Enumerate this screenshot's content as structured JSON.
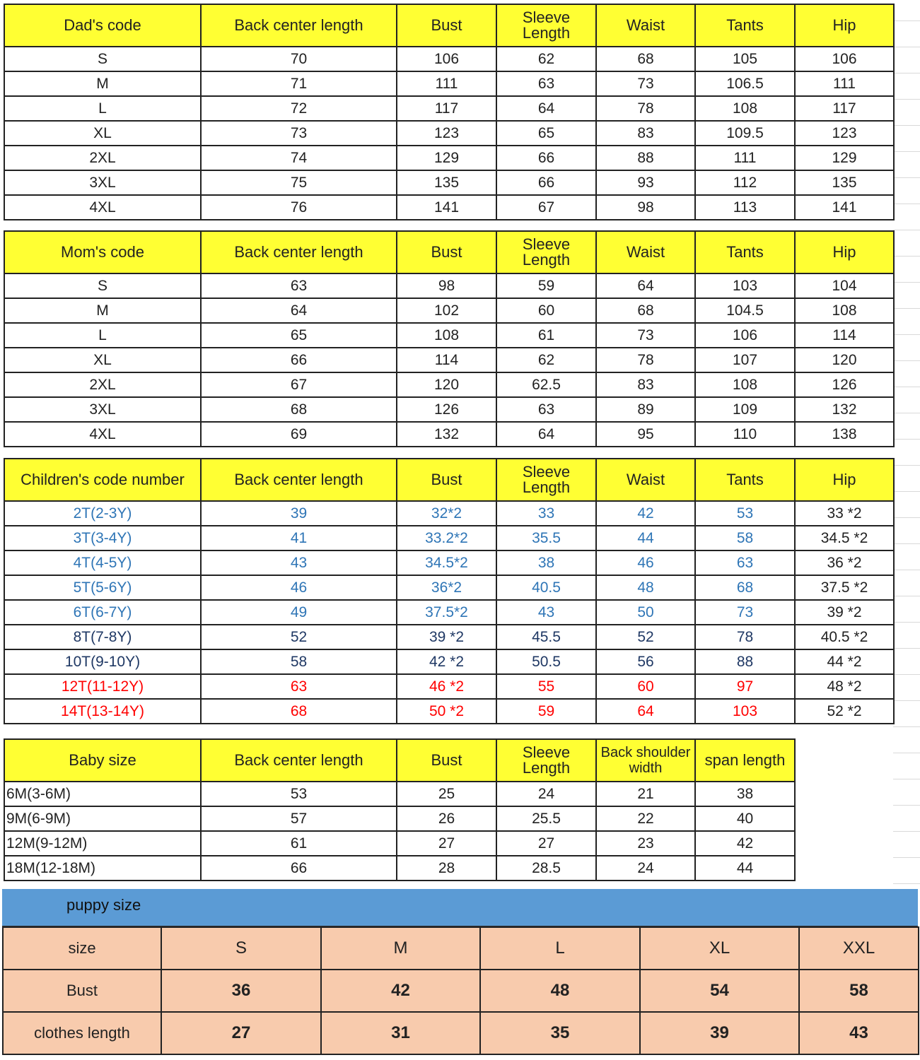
{
  "colors": {
    "header_yellow": "#ffff33",
    "puppy_bar": "#5b9bd5",
    "puppy_cells": "#f8cbad",
    "blue": "#2e75b6",
    "navy": "#1f3864",
    "red": "#ff0000"
  },
  "sections": [
    {
      "headers": [
        "Dad's code",
        "Back center length",
        "Bust",
        "Sleeve Length",
        "Waist",
        "Tants",
        "Hip"
      ],
      "rows": [
        [
          "S",
          "70",
          "106",
          "62",
          "68",
          "105",
          "106"
        ],
        [
          "M",
          "71",
          "111",
          "63",
          "73",
          "106.5",
          "111"
        ],
        [
          "L",
          "72",
          "117",
          "64",
          "78",
          "108",
          "117"
        ],
        [
          "XL",
          "73",
          "123",
          "65",
          "83",
          "109.5",
          "123"
        ],
        [
          "2XL",
          "74",
          "129",
          "66",
          "88",
          "111",
          "129"
        ],
        [
          "3XL",
          "75",
          "135",
          "66",
          "93",
          "112",
          "135"
        ],
        [
          "4XL",
          "76",
          "141",
          "67",
          "98",
          "113",
          "141"
        ]
      ]
    },
    {
      "headers": [
        "Mom's code",
        "Back center length",
        "Bust",
        "Sleeve Length",
        "Waist",
        "Tants",
        "Hip"
      ],
      "rows": [
        [
          "S",
          "63",
          "98",
          "59",
          "64",
          "103",
          "104"
        ],
        [
          "M",
          "64",
          "102",
          "60",
          "68",
          "104.5",
          "108"
        ],
        [
          "L",
          "65",
          "108",
          "61",
          "73",
          "106",
          "114"
        ],
        [
          "XL",
          "66",
          "114",
          "62",
          "78",
          "107",
          "120"
        ],
        [
          "2XL",
          "67",
          "120",
          "62.5",
          "83",
          "108",
          "126"
        ],
        [
          "3XL",
          "68",
          "126",
          "63",
          "89",
          "109",
          "132"
        ],
        [
          "4XL",
          "69",
          "132",
          "64",
          "95",
          "110",
          "138"
        ]
      ]
    },
    {
      "headers": [
        "Children's code number",
        "Back center length",
        "Bust",
        "Sleeve Length",
        "Waist",
        "Tants",
        "Hip"
      ],
      "rows": [
        [
          "2T(2-3Y)",
          "39",
          "32*2",
          "33",
          "42",
          "53",
          "33 *2"
        ],
        [
          "3T(3-4Y)",
          "41",
          "33.2*2",
          "35.5",
          "44",
          "58",
          "34.5 *2"
        ],
        [
          "4T(4-5Y)",
          "43",
          "34.5*2",
          "38",
          "46",
          "63",
          "36 *2"
        ],
        [
          "5T(5-6Y)",
          "46",
          "36*2",
          "40.5",
          "48",
          "68",
          "37.5 *2"
        ],
        [
          "6T(6-7Y)",
          "49",
          "37.5*2",
          "43",
          "50",
          "73",
          "39 *2"
        ],
        [
          "8T(7-8Y)",
          "52",
          "39 *2",
          "45.5",
          "52",
          "78",
          "40.5 *2"
        ],
        [
          "10T(9-10Y)",
          "58",
          "42 *2",
          "50.5",
          "56",
          "88",
          "44 *2"
        ],
        [
          "12T(11-12Y)",
          "63",
          "46 *2",
          "55",
          "60",
          "97",
          "48 *2"
        ],
        [
          "14T(13-14Y)",
          "68",
          "50 *2",
          "59",
          "64",
          "103",
          "52 *2"
        ]
      ],
      "row_colors": [
        "#2e75b6",
        "#2e75b6",
        "#2e75b6",
        "#2e75b6",
        "#2e75b6",
        "#1f3864",
        "#1f3864",
        "#ff0000",
        "#ff0000"
      ]
    },
    {
      "headers": [
        "Baby size",
        "Back center length",
        "Bust",
        "Sleeve Length",
        "Back shoulder width",
        "span length"
      ],
      "rows": [
        [
          "6M(3-6M)",
          "53",
          "25",
          "24",
          "21",
          "38"
        ],
        [
          "9M(6-9M)",
          "57",
          "26",
          "25.5",
          "22",
          "40"
        ],
        [
          "12M(9-12M)",
          "61",
          "27",
          "27",
          "23",
          "42"
        ],
        [
          "18M(12-18M)",
          "66",
          "28",
          "28.5",
          "24",
          "44"
        ]
      ]
    }
  ],
  "puppy": {
    "title": "puppy size",
    "rows": [
      [
        "size",
        "S",
        "M",
        "L",
        "XL",
        "XXL"
      ],
      [
        "Bust",
        "36",
        "42",
        "48",
        "54",
        "58"
      ],
      [
        "clothes length",
        "27",
        "31",
        "35",
        "39",
        "43"
      ]
    ]
  }
}
